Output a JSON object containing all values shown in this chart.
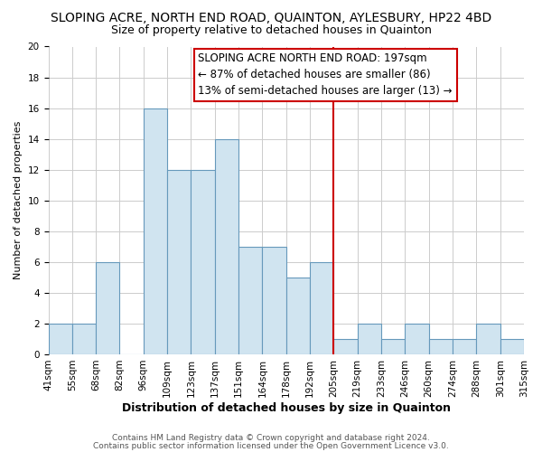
{
  "title": "SLOPING ACRE, NORTH END ROAD, QUAINTON, AYLESBURY, HP22 4BD",
  "subtitle": "Size of property relative to detached houses in Quainton",
  "xlabel": "Distribution of detached houses by size in Quainton",
  "ylabel": "Number of detached properties",
  "bin_labels": [
    "41sqm",
    "55sqm",
    "68sqm",
    "82sqm",
    "96sqm",
    "109sqm",
    "123sqm",
    "137sqm",
    "151sqm",
    "164sqm",
    "178sqm",
    "192sqm",
    "205sqm",
    "219sqm",
    "233sqm",
    "246sqm",
    "260sqm",
    "274sqm",
    "288sqm",
    "301sqm",
    "315sqm"
  ],
  "bar_heights": [
    2,
    2,
    6,
    0,
    16,
    12,
    12,
    14,
    7,
    7,
    5,
    6,
    1,
    2,
    1,
    2,
    1,
    1,
    2,
    1
  ],
  "bar_color": "#d0e4f0",
  "bar_edge_color": "#6699bb",
  "vline_label_index": 11,
  "vline_color": "#cc0000",
  "ylim": [
    0,
    20
  ],
  "yticks": [
    0,
    2,
    4,
    6,
    8,
    10,
    12,
    14,
    16,
    18,
    20
  ],
  "annotation_line1": "SLOPING ACRE NORTH END ROAD: 197sqm",
  "annotation_line2": "← 87% of detached houses are smaller (86)",
  "annotation_line3": "13% of semi-detached houses are larger (13) →",
  "footer_line1": "Contains HM Land Registry data © Crown copyright and database right 2024.",
  "footer_line2": "Contains public sector information licensed under the Open Government Licence v3.0.",
  "title_fontsize": 10,
  "subtitle_fontsize": 9,
  "xlabel_fontsize": 9,
  "ylabel_fontsize": 8,
  "tick_fontsize": 7.5,
  "annotation_fontsize": 8.5,
  "footer_fontsize": 6.5,
  "background_color": "#ffffff",
  "grid_color": "#cccccc"
}
